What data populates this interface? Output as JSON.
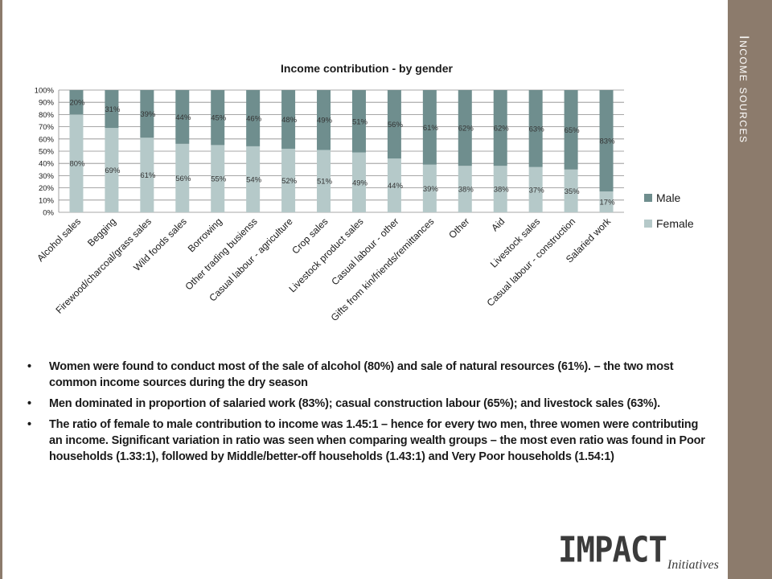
{
  "slide": {
    "section_title": "Income sources",
    "bullets": [
      "Women were found to conduct most of the sale of alcohol (80%) and sale of natural resources (61%). – the two most common income sources during the dry season",
      "Men dominated in proportion of salaried work (83%); casual construction labour (65%); and livestock sales (63%).",
      "The ratio of female to male contribution to income was 1.45:1 – hence for every two men, three women were contributing an income. Significant variation in ratio was seen when comparing wealth groups – the most even ratio was found in Poor households (1.33:1), followed by Middle/better-off households (1.43:1) and Very Poor households (1.54:1)"
    ],
    "logo": {
      "main": "IMPACT",
      "sub": "Initiatives"
    },
    "colors": {
      "sidebar": "#8c7b6c",
      "male": "#6f8e8e",
      "female": "#b5c9c9"
    }
  },
  "chart_data": {
    "type": "bar",
    "stacked": "percent",
    "title": "Income contribution - by gender",
    "xlabel": "",
    "ylabel": "",
    "ylim": [
      0,
      100
    ],
    "yticks": [
      "0%",
      "10%",
      "20%",
      "30%",
      "40%",
      "50%",
      "60%",
      "70%",
      "80%",
      "90%",
      "100%"
    ],
    "grid": true,
    "legend_position": "right",
    "categories": [
      "Alcohol sales",
      "Begging",
      "Firewood/charcoal/grass sales",
      "Wild foods sales",
      "Borrowing",
      "Other trading busienss",
      "Casual labour - agriculture",
      "Crop sales",
      "Livestock product sales",
      "Casual labour - other",
      "Gifts from kin/friends/remittances",
      "Other",
      "Aid",
      "Livestock sales",
      "Casual labour - construction",
      "Salaried work"
    ],
    "series": [
      {
        "name": "Female",
        "color": "#b5c9c9",
        "values": [
          80,
          69,
          61,
          56,
          55,
          54,
          52,
          51,
          49,
          44,
          39,
          38,
          38,
          37,
          35,
          17
        ]
      },
      {
        "name": "Male",
        "color": "#6f8e8e",
        "values": [
          20,
          31,
          39,
          44,
          45,
          46,
          48,
          49,
          51,
          56,
          61,
          62,
          62,
          63,
          65,
          83
        ]
      }
    ],
    "legend": [
      "Male",
      "Female"
    ]
  }
}
